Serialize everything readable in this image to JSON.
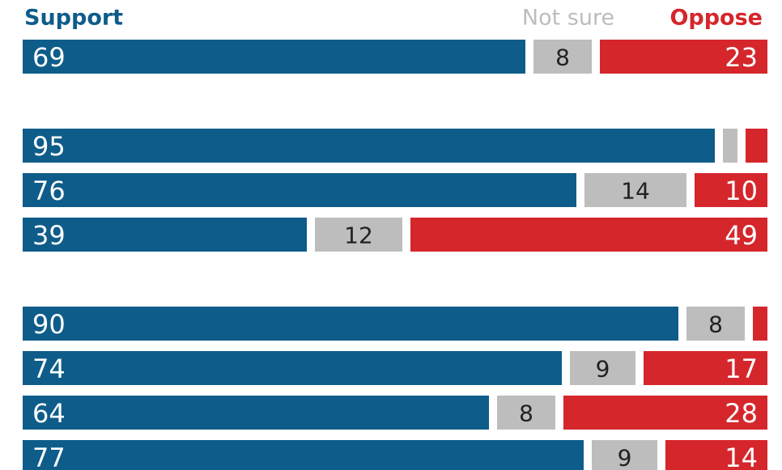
{
  "chart_data": {
    "type": "stacked-bar",
    "categories": [
      null,
      null,
      null,
      null,
      null,
      null,
      null,
      null
    ],
    "series": [
      {
        "name": "Support",
        "color": "#0e5c8a",
        "values": [
          69,
          95,
          76,
          39,
          90,
          74,
          64,
          77
        ]
      },
      {
        "name": "Not sure",
        "color": "#bdbdbd",
        "values": [
          8,
          2,
          14,
          12,
          8,
          9,
          8,
          9
        ]
      },
      {
        "name": "Oppose",
        "color": "#d5262c",
        "values": [
          23,
          3,
          10,
          49,
          2,
          17,
          28,
          14
        ]
      }
    ]
  }
}
